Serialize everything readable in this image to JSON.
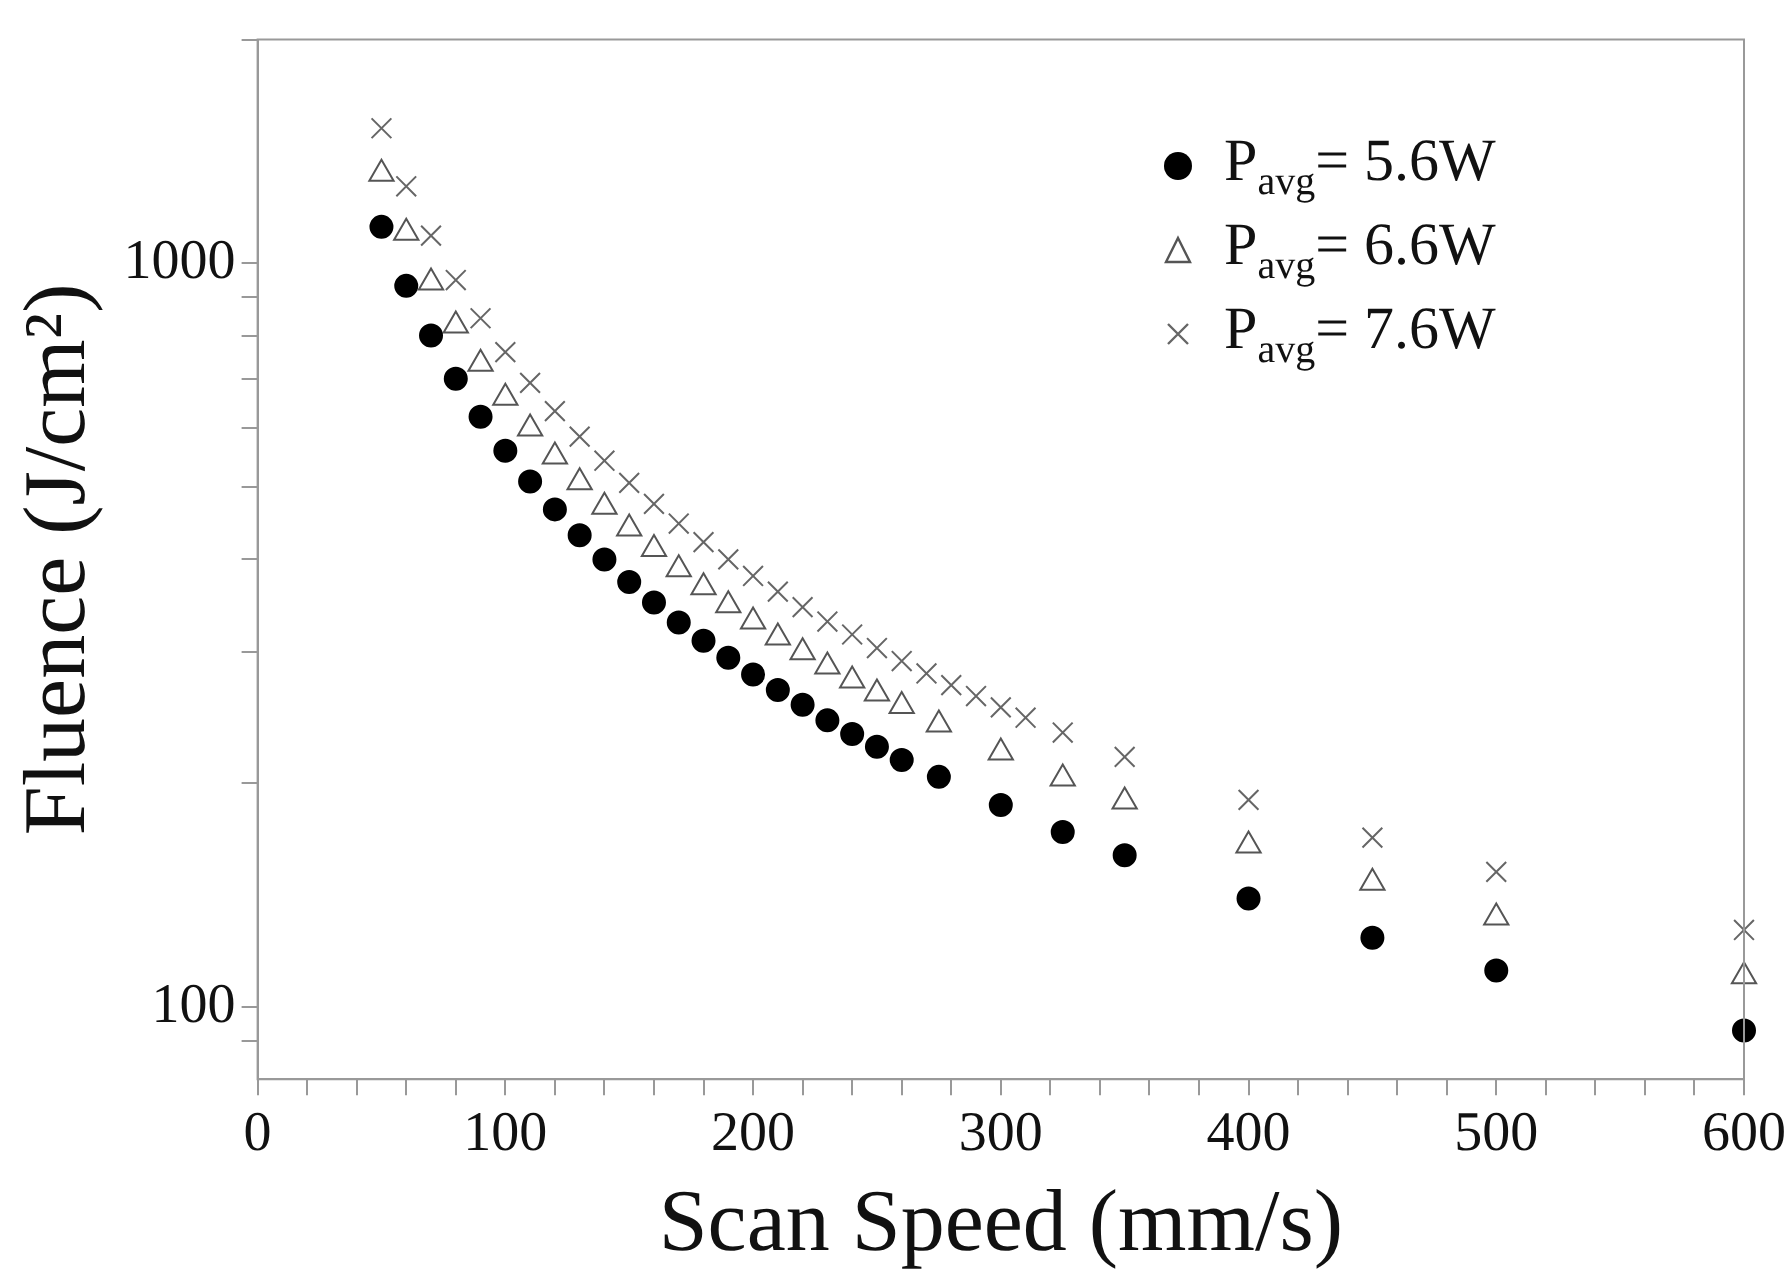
{
  "chart_data": {
    "type": "scatter",
    "xlabel": "Scan Speed (mm/s)",
    "ylabel": "Fluence (J/cm²)",
    "xlim": [
      0,
      600
    ],
    "xticks": [
      0,
      {
        "value": 20,
        "label": null
      },
      {
        "value": 40,
        "label": null
      },
      {
        "value": 60,
        "label": null
      },
      {
        "value": 80,
        "label": null
      },
      100,
      {
        "value": 120,
        "label": null
      },
      {
        "value": 140,
        "label": null
      },
      {
        "value": 160,
        "label": null
      },
      {
        "value": 180,
        "label": null
      },
      200,
      {
        "value": 220,
        "label": null
      },
      {
        "value": 240,
        "label": null
      },
      {
        "value": 260,
        "label": null
      },
      {
        "value": 280,
        "label": null
      },
      300,
      {
        "value": 320,
        "label": null
      },
      {
        "value": 340,
        "label": null
      },
      {
        "value": 360,
        "label": null
      },
      {
        "value": 380,
        "label": null
      },
      400,
      {
        "value": 420,
        "label": null
      },
      {
        "value": 440,
        "label": null
      },
      {
        "value": 460,
        "label": null
      },
      {
        "value": 480,
        "label": null
      },
      500,
      {
        "value": 520,
        "label": null
      },
      {
        "value": 540,
        "label": null
      },
      {
        "value": 560,
        "label": null
      },
      {
        "value": 580,
        "label": null
      },
      600
    ],
    "ylim": [
      80,
      2000
    ],
    "yticks": [
      {
        "value": 90,
        "label": null
      },
      100,
      {
        "value": 200,
        "label": null
      },
      {
        "value": 300,
        "label": null
      },
      {
        "value": 400,
        "label": null
      },
      {
        "value": 500,
        "label": null
      },
      {
        "value": 600,
        "label": null
      },
      {
        "value": 700,
        "label": null
      },
      {
        "value": 800,
        "label": null
      },
      {
        "value": 900,
        "label": null
      },
      1000,
      {
        "value": 2000,
        "label": null
      }
    ],
    "log": "y",
    "grid": false,
    "legend": "top right",
    "series": [
      {
        "name": "P$_{avg}$= 5.6W",
        "color": "#000000",
        "marker": "circle",
        "x": [
          50,
          60,
          70,
          80,
          90,
          100,
          110,
          120,
          130,
          140,
          150,
          160,
          170,
          180,
          190,
          200,
          210,
          220,
          230,
          240,
          250,
          260,
          275,
          300,
          325,
          350,
          400,
          450,
          500,
          600
        ],
        "values": [
          1120,
          933,
          800,
          700,
          622,
          560,
          509,
          467,
          431,
          400,
          373,
          350,
          329,
          311,
          295,
          280,
          267,
          255,
          243,
          233,
          224,
          215,
          204,
          187,
          172,
          160,
          140,
          124,
          112,
          93
        ]
      },
      {
        "name": "P$_{avg}$= 6.6W",
        "color": "#555555",
        "marker": "triangle",
        "x": [
          50,
          60,
          70,
          80,
          90,
          100,
          110,
          120,
          130,
          140,
          150,
          160,
          170,
          180,
          190,
          200,
          210,
          220,
          230,
          240,
          250,
          260,
          275,
          300,
          325,
          350,
          400,
          450,
          500,
          600
        ],
        "values": [
          1320,
          1100,
          943,
          825,
          733,
          660,
          600,
          550,
          508,
          471,
          440,
          413,
          388,
          367,
          347,
          330,
          314,
          300,
          287,
          275,
          264,
          254,
          240,
          220,
          203,
          189,
          165,
          147,
          132,
          110
        ]
      },
      {
        "name": "P$_{avg}$= 7.6W",
        "color": "#666666",
        "marker": "cross",
        "x": [
          50,
          60,
          70,
          80,
          90,
          100,
          110,
          120,
          130,
          140,
          150,
          160,
          170,
          180,
          190,
          200,
          210,
          220,
          230,
          240,
          250,
          260,
          270,
          280,
          290,
          300,
          310,
          325,
          350,
          400,
          450,
          500,
          600
        ],
        "values": [
          1520,
          1270,
          1090,
          950,
          844,
          760,
          691,
          633,
          585,
          543,
          507,
          475,
          447,
          422,
          400,
          380,
          362,
          345,
          330,
          317,
          304,
          292,
          281,
          271,
          262,
          253,
          245,
          234,
          217,
          190,
          169,
          152,
          127
        ]
      }
    ]
  }
}
